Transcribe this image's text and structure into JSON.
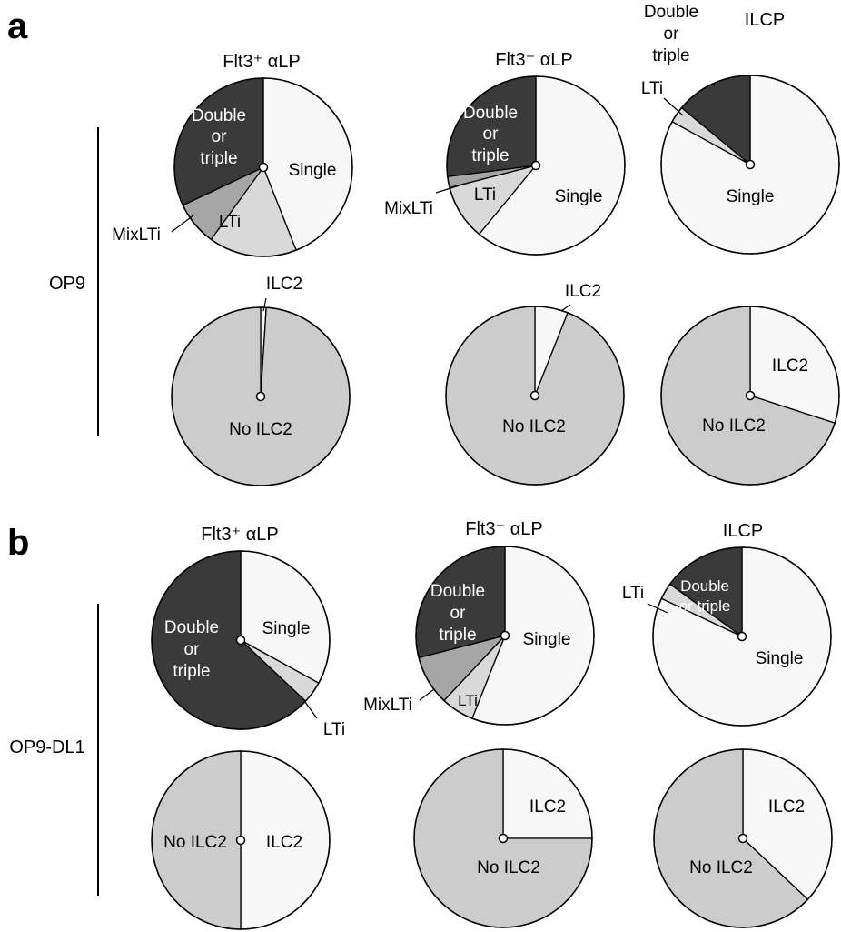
{
  "figure": {
    "panels": [
      {
        "letter": "a",
        "condition": "OP9",
        "columns": [
          "Flt3⁺ αLP",
          "Flt3⁻ αLP",
          "ILCP"
        ]
      },
      {
        "letter": "b",
        "condition": "OP9-DL1",
        "columns": [
          "Flt3⁺ αLP",
          "Flt3⁻ αLP",
          "ILCP"
        ]
      }
    ]
  },
  "colors": {
    "Single": "#f7f7f7",
    "LTi": "#d9d9d9",
    "MixLTi": "#a6a6a6",
    "Double or triple": "#3a3a3a",
    "ILC2": "#f7f7f7",
    "No ILC2": "#cccccc"
  },
  "chart_data": [
    {
      "type": "pie",
      "panel": "a",
      "condition": "OP9",
      "population": "Flt3⁺ αLP",
      "slices": [
        {
          "label": "Single",
          "value": 44
        },
        {
          "label": "LTi",
          "value": 16
        },
        {
          "label": "MixLTi",
          "value": 8
        },
        {
          "label": "Double or triple",
          "value": 32
        }
      ]
    },
    {
      "type": "pie",
      "panel": "a",
      "condition": "OP9",
      "population": "Flt3⁻ αLP",
      "slices": [
        {
          "label": "Single",
          "value": 61
        },
        {
          "label": "LTi",
          "value": 10
        },
        {
          "label": "MixLTi",
          "value": 2
        },
        {
          "label": "Double or triple",
          "value": 27
        }
      ]
    },
    {
      "type": "pie",
      "panel": "a",
      "condition": "OP9",
      "population": "ILCP",
      "slices": [
        {
          "label": "Single",
          "value": 83
        },
        {
          "label": "LTi",
          "value": 3
        },
        {
          "label": "Double or triple",
          "value": 14
        }
      ]
    },
    {
      "type": "pie",
      "panel": "a",
      "condition": "OP9",
      "population": "Flt3⁺ αLP",
      "slices": [
        {
          "label": "ILC2",
          "value": 1
        },
        {
          "label": "No ILC2",
          "value": 99
        }
      ]
    },
    {
      "type": "pie",
      "panel": "a",
      "condition": "OP9",
      "population": "Flt3⁻ αLP",
      "slices": [
        {
          "label": "ILC2",
          "value": 6
        },
        {
          "label": "No ILC2",
          "value": 94
        }
      ]
    },
    {
      "type": "pie",
      "panel": "a",
      "condition": "OP9",
      "population": "ILCP",
      "slices": [
        {
          "label": "ILC2",
          "value": 30
        },
        {
          "label": "No ILC2",
          "value": 70
        }
      ]
    },
    {
      "type": "pie",
      "panel": "b",
      "condition": "OP9-DL1",
      "population": "Flt3⁺ αLP",
      "slices": [
        {
          "label": "Single",
          "value": 33
        },
        {
          "label": "LTi",
          "value": 4
        },
        {
          "label": "Double or triple",
          "value": 63
        }
      ]
    },
    {
      "type": "pie",
      "panel": "b",
      "condition": "OP9-DL1",
      "population": "Flt3⁻ αLP",
      "slices": [
        {
          "label": "Single",
          "value": 56
        },
        {
          "label": "LTi",
          "value": 6
        },
        {
          "label": "MixLTi",
          "value": 9
        },
        {
          "label": "Double or triple",
          "value": 29
        }
      ]
    },
    {
      "type": "pie",
      "panel": "b",
      "condition": "OP9-DL1",
      "population": "ILCP",
      "slices": [
        {
          "label": "Single",
          "value": 82
        },
        {
          "label": "LTi",
          "value": 3
        },
        {
          "label": "Double or triple",
          "value": 15
        }
      ]
    },
    {
      "type": "pie",
      "panel": "b",
      "condition": "OP9-DL1",
      "population": "Flt3⁺ αLP",
      "slices": [
        {
          "label": "ILC2",
          "value": 50
        },
        {
          "label": "No ILC2",
          "value": 50
        }
      ]
    },
    {
      "type": "pie",
      "panel": "b",
      "condition": "OP9-DL1",
      "population": "Flt3⁻ αLP",
      "slices": [
        {
          "label": "ILC2",
          "value": 25
        },
        {
          "label": "No ILC2",
          "value": 75
        }
      ]
    },
    {
      "type": "pie",
      "panel": "b",
      "condition": "OP9-DL1",
      "population": "ILCP",
      "slices": [
        {
          "label": "ILC2",
          "value": 37
        },
        {
          "label": "No ILC2",
          "value": 63
        }
      ]
    }
  ]
}
